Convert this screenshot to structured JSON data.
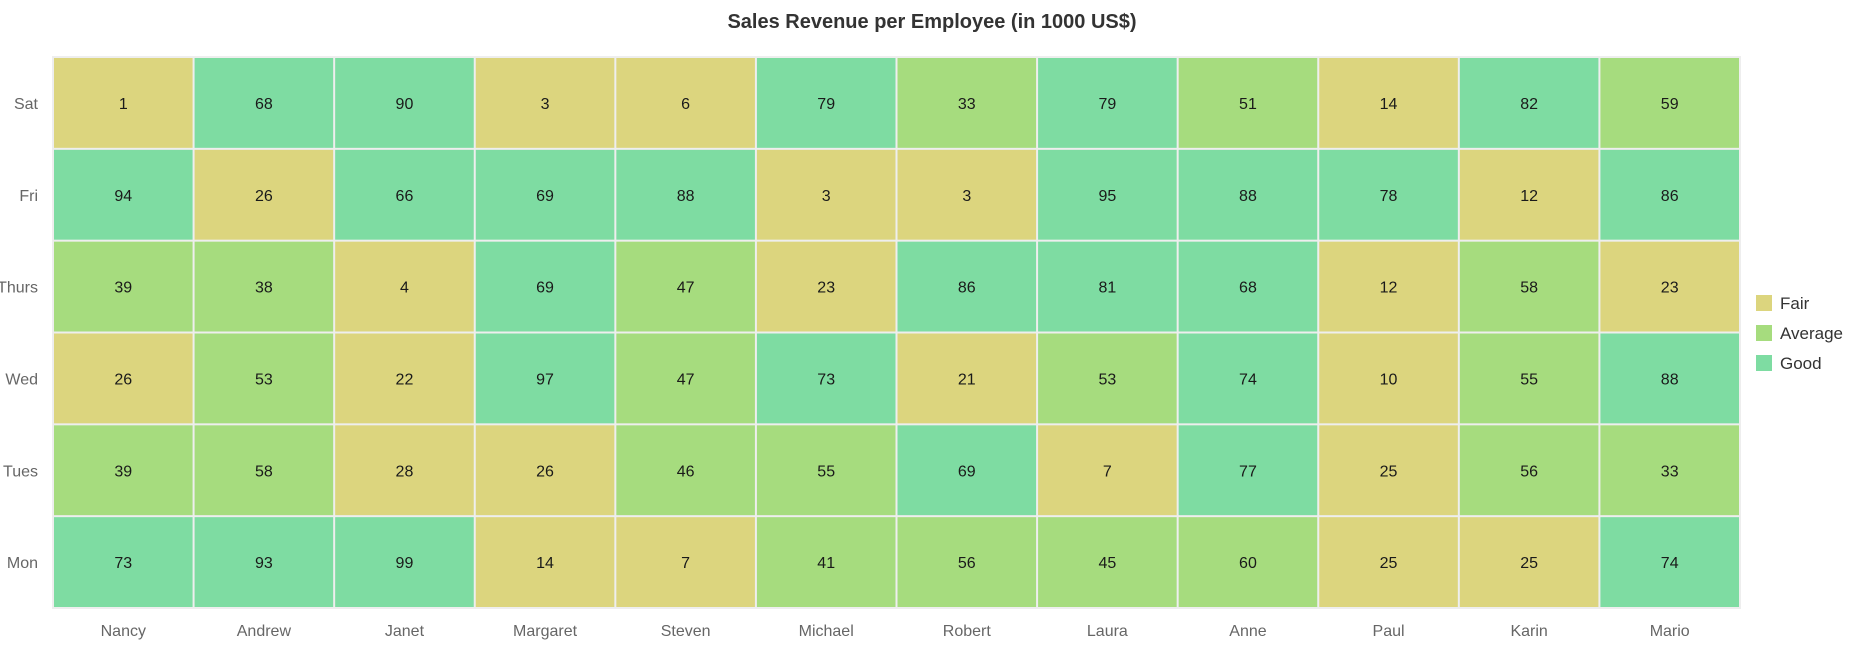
{
  "chart_data": {
    "type": "heatmap",
    "title": "Sales Revenue per Employee (in 1000 US$)",
    "xlabel": "",
    "ylabel": "",
    "x_categories": [
      "Nancy",
      "Andrew",
      "Janet",
      "Margaret",
      "Steven",
      "Michael",
      "Robert",
      "Laura",
      "Anne",
      "Paul",
      "Karin",
      "Mario"
    ],
    "y_categories": [
      "Sat",
      "Fri",
      "Thurs",
      "Wed",
      "Tues",
      "Mon"
    ],
    "values": [
      [
        1,
        68,
        90,
        3,
        6,
        79,
        33,
        79,
        51,
        14,
        82,
        59
      ],
      [
        94,
        26,
        66,
        69,
        88,
        3,
        3,
        95,
        88,
        78,
        12,
        86
      ],
      [
        39,
        38,
        4,
        69,
        47,
        23,
        86,
        81,
        68,
        12,
        58,
        23
      ],
      [
        26,
        53,
        22,
        97,
        47,
        73,
        21,
        53,
        74,
        10,
        55,
        88
      ],
      [
        39,
        58,
        28,
        26,
        46,
        55,
        69,
        7,
        77,
        25,
        56,
        33
      ],
      [
        73,
        93,
        99,
        14,
        7,
        41,
        56,
        45,
        60,
        25,
        25,
        74
      ]
    ],
    "legend_position": "right",
    "legend": [
      {
        "label": "Fair",
        "color": "#DCD57E",
        "range": [
          0,
          30
        ]
      },
      {
        "label": "Average",
        "color": "#A6DC7E",
        "range": [
          31,
          60
        ]
      },
      {
        "label": "Good",
        "color": "#7EDCA2",
        "range": [
          61,
          100
        ]
      }
    ],
    "grid_line_color": "#EEEEEE"
  }
}
